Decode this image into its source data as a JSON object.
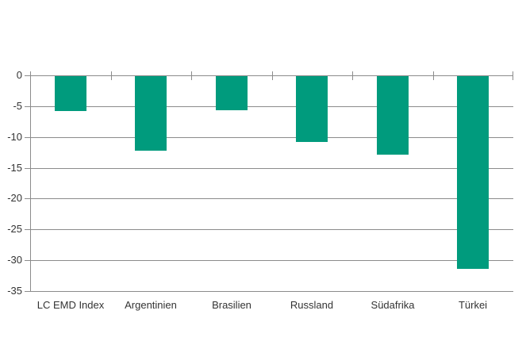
{
  "chart_data": {
    "type": "bar",
    "title": "",
    "xlabel": "",
    "ylabel": "",
    "categories": [
      "LC EMD Index",
      "Argentinien",
      "Brasilien",
      "Russland",
      "Südafrika",
      "Türkei"
    ],
    "values": [
      -5.6,
      -12.1,
      -5.5,
      -10.7,
      -12.8,
      -31.3
    ],
    "ylim": [
      -35,
      0
    ],
    "yticks": [
      0,
      -5,
      -10,
      -15,
      -20,
      -25,
      -30,
      -35
    ],
    "ytick_labels": [
      "0",
      "-5",
      "-10",
      "-15",
      "-20",
      "-25",
      "-30",
      "-35"
    ],
    "grid": true,
    "legend": false,
    "colors": {
      "bar": "#009B7D",
      "gridline": "#8C8C8C",
      "axis": "#8C8C8C",
      "text": "#333333",
      "background": "#FFFFFF"
    }
  }
}
